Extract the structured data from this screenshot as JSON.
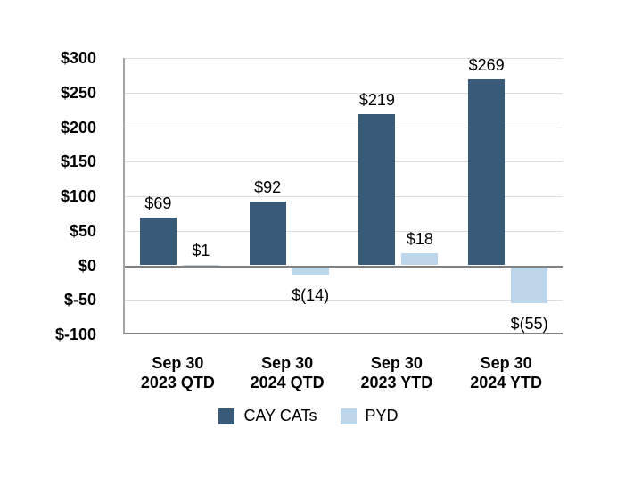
{
  "chart_data": {
    "type": "bar",
    "categories": [
      [
        "Sep 30",
        "2023 QTD"
      ],
      [
        "Sep 30",
        "2024 QTD"
      ],
      [
        "Sep 30",
        "2023 YTD"
      ],
      [
        "Sep 30",
        "2024 YTD"
      ]
    ],
    "series": [
      {
        "name": "CAY CATs",
        "color": "#3A5A7A",
        "values": [
          69,
          92,
          219,
          269
        ],
        "labels": [
          "$69",
          "$92",
          "$219",
          "$269"
        ]
      },
      {
        "name": "PYD",
        "color": "#BDD6EA",
        "values": [
          1,
          -14,
          18,
          -55
        ],
        "labels": [
          "$1",
          "$(14)",
          "$18",
          "$(55)"
        ]
      }
    ],
    "y_axis": {
      "min": -100,
      "max": 300,
      "step": 50,
      "tick_labels": [
        "$300",
        "$250",
        "$200",
        "$150",
        "$100",
        "$50",
        "$0",
        "$-50",
        "$-100"
      ]
    },
    "grid": true,
    "legend_position": "bottom",
    "title": "",
    "xlabel": "",
    "ylabel": ""
  },
  "colors": {
    "cay_cats": "#3A5A7A",
    "pyd": "#BDD6EA",
    "gridline": "#DCDCDC",
    "axis_line": "#808080",
    "y_axis_line": "#A6A6A6",
    "background": "#FFFFFF",
    "text": "#000000"
  }
}
